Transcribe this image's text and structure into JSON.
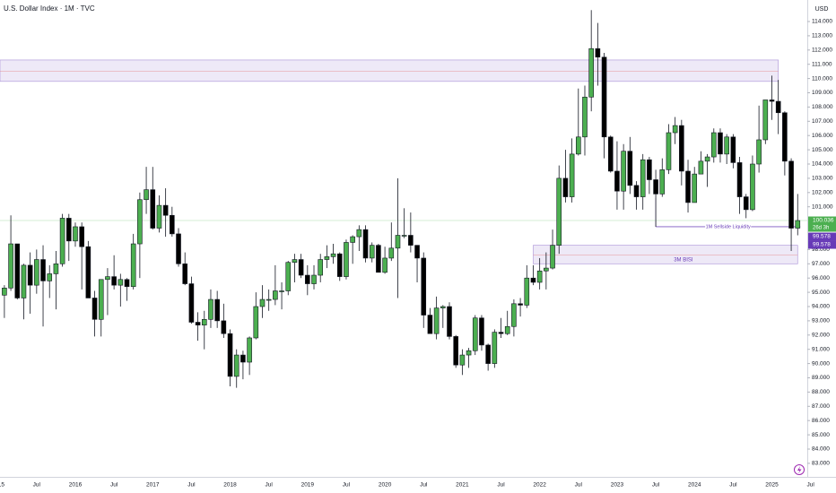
{
  "chart_data": {
    "type": "candlestick",
    "title": "U.S. Dollar Index · 1M · TVC",
    "currency": "USD",
    "x": [
      "2015-02",
      "2015-03",
      "2015-04",
      "2015-05",
      "2015-06",
      "2015-07",
      "2015-08",
      "2015-09",
      "2015-10",
      "2015-11",
      "2015-12",
      "2016-01",
      "2016-02",
      "2016-03",
      "2016-04",
      "2016-05",
      "2016-06",
      "2016-07",
      "2016-08",
      "2016-09",
      "2016-10",
      "2016-11",
      "2016-12",
      "2017-01",
      "2017-02",
      "2017-03",
      "2017-04",
      "2017-05",
      "2017-06",
      "2017-07",
      "2017-08",
      "2017-09",
      "2017-10",
      "2017-11",
      "2017-12",
      "2018-01",
      "2018-02",
      "2018-03",
      "2018-04",
      "2018-05",
      "2018-06",
      "2018-07",
      "2018-08",
      "2018-09",
      "2018-10",
      "2018-11",
      "2018-12",
      "2019-01",
      "2019-02",
      "2019-03",
      "2019-04",
      "2019-05",
      "2019-06",
      "2019-07",
      "2019-08",
      "2019-09",
      "2019-10",
      "2019-11",
      "2019-12",
      "2020-01",
      "2020-02",
      "2020-03",
      "2020-04",
      "2020-05",
      "2020-06",
      "2020-07",
      "2020-08",
      "2020-09",
      "2020-10",
      "2020-11",
      "2020-12",
      "2021-01",
      "2021-02",
      "2021-03",
      "2021-04",
      "2021-05",
      "2021-06",
      "2021-07",
      "2021-08",
      "2021-09",
      "2021-10",
      "2021-11",
      "2021-12",
      "2022-01",
      "2022-02",
      "2022-03",
      "2022-04",
      "2022-05",
      "2022-06",
      "2022-07",
      "2022-08",
      "2022-09",
      "2022-10",
      "2022-11",
      "2022-12",
      "2023-01",
      "2023-02",
      "2023-03",
      "2023-04",
      "2023-05",
      "2023-06",
      "2023-07",
      "2023-08",
      "2023-09",
      "2023-10",
      "2023-11",
      "2023-12",
      "2024-01",
      "2024-02",
      "2024-03",
      "2024-04",
      "2024-05",
      "2024-06",
      "2024-07",
      "2024-08",
      "2024-09",
      "2024-10",
      "2024-11",
      "2024-12",
      "2025-01",
      "2025-02",
      "2025-03",
      "2025-04",
      "2025-05"
    ],
    "open": [
      94.8,
      95.3,
      98.4,
      94.6,
      96.9,
      95.5,
      97.3,
      95.8,
      96.3,
      97.0,
      100.2,
      98.6,
      99.6,
      98.2,
      94.6,
      93.1,
      95.9,
      96.1,
      95.5,
      95.9,
      95.4,
      98.4,
      101.5,
      102.2,
      99.5,
      101.1,
      100.4,
      99.1,
      97.0,
      95.6,
      92.9,
      92.7,
      93.1,
      94.5,
      93.0,
      92.1,
      89.1,
      90.6,
      90.1,
      91.8,
      94.0,
      94.5,
      94.5,
      95.1,
      95.1,
      97.1,
      97.3,
      96.2,
      95.6,
      96.2,
      97.3,
      97.5,
      97.7,
      96.1,
      98.5,
      98.9,
      99.4,
      97.4,
      98.3,
      96.4,
      97.4,
      98.1,
      99.0,
      99.0,
      98.3,
      97.4,
      93.4,
      92.1,
      93.9,
      94.0,
      91.9,
      89.9,
      90.6,
      90.9,
      93.2,
      91.3,
      90.0,
      92.2,
      92.1,
      92.6,
      94.2,
      94.1,
      96.0,
      95.7,
      96.5,
      96.7,
      98.3,
      103.0,
      101.7,
      104.7,
      105.9,
      108.7,
      112.1,
      111.5,
      105.9,
      103.5,
      102.1,
      104.9,
      102.5,
      101.7,
      104.3,
      102.9,
      101.9,
      103.6,
      106.2,
      106.7,
      103.5,
      101.3,
      103.3,
      104.2,
      104.5,
      106.2,
      104.7,
      105.9,
      104.1,
      101.7,
      100.8,
      104.0,
      105.7,
      108.5,
      108.4,
      107.6,
      104.2,
      99.5
    ],
    "high": [
      95.5,
      100.4,
      98.4,
      97.0,
      97.8,
      98.0,
      98.3,
      96.9,
      97.9,
      100.5,
      100.5,
      99.9,
      99.9,
      98.6,
      95.1,
      95.9,
      96.7,
      97.6,
      96.3,
      96.0,
      99.1,
      102.0,
      103.8,
      103.8,
      101.8,
      102.3,
      101.0,
      99.5,
      97.8,
      96.1,
      93.6,
      93.7,
      95.2,
      95.1,
      94.2,
      92.4,
      91.0,
      90.9,
      91.9,
      95.0,
      95.5,
      95.2,
      96.9,
      95.7,
      97.2,
      97.7,
      97.7,
      96.9,
      96.9,
      97.7,
      98.3,
      98.4,
      97.8,
      98.7,
      99.0,
      99.7,
      99.7,
      98.5,
      98.4,
      98.2,
      99.9,
      103.0,
      100.9,
      100.6,
      98.3,
      97.8,
      93.9,
      94.7,
      94.1,
      94.3,
      92.0,
      91.0,
      91.1,
      93.4,
      93.4,
      91.4,
      92.4,
      93.2,
      93.7,
      94.5,
      94.6,
      96.9,
      96.9,
      97.4,
      97.8,
      99.4,
      103.9,
      105.0,
      105.8,
      109.3,
      109.5,
      114.8,
      113.9,
      111.8,
      106.0,
      105.6,
      105.4,
      105.9,
      102.8,
      104.7,
      104.5,
      103.6,
      104.4,
      106.8,
      107.3,
      107.1,
      104.3,
      103.8,
      104.9,
      104.7,
      106.5,
      106.5,
      106.1,
      106.1,
      104.5,
      101.9,
      104.6,
      108.1,
      108.5,
      110.2,
      109.9,
      107.7,
      104.4,
      101.9
    ],
    "low": [
      93.2,
      95.1,
      94.5,
      93.1,
      93.5,
      94.9,
      92.6,
      94.6,
      93.8,
      96.8,
      97.2,
      98.2,
      95.2,
      94.6,
      91.9,
      91.9,
      93.4,
      95.2,
      94.0,
      94.4,
      95.2,
      96.0,
      100.5,
      99.4,
      99.2,
      98.9,
      98.9,
      96.8,
      95.5,
      92.8,
      91.6,
      91.0,
      92.5,
      92.5,
      91.8,
      88.4,
      88.3,
      88.9,
      89.2,
      91.7,
      93.2,
      93.7,
      94.1,
      93.8,
      94.8,
      95.7,
      96.0,
      94.8,
      95.2,
      95.7,
      96.7,
      97.0,
      95.8,
      95.9,
      97.0,
      97.9,
      97.1,
      97.1,
      96.4,
      96.3,
      97.2,
      94.6,
      98.8,
      97.8,
      95.7,
      92.5,
      92.1,
      91.7,
      92.5,
      91.7,
      89.7,
      89.2,
      89.7,
      90.6,
      90.9,
      89.5,
      89.7,
      91.8,
      92.0,
      91.9,
      93.3,
      93.9,
      95.5,
      95.2,
      95.2,
      96.6,
      97.7,
      101.3,
      101.3,
      104.6,
      104.6,
      107.7,
      109.5,
      104.4,
      103.4,
      100.8,
      100.8,
      101.9,
      100.8,
      100.8,
      101.9,
      99.6,
      101.7,
      103.3,
      105.4,
      102.5,
      100.6,
      101.3,
      103.4,
      102.4,
      104.1,
      104.1,
      104.0,
      103.7,
      100.5,
      100.2,
      100.7,
      103.4,
      105.4,
      107.1,
      106.1,
      103.2,
      97.9,
      99.0
    ],
    "close": [
      95.3,
      98.4,
      94.6,
      96.9,
      95.5,
      97.3,
      95.8,
      96.3,
      97.0,
      100.2,
      98.6,
      99.6,
      98.2,
      94.6,
      93.1,
      95.9,
      96.1,
      95.5,
      95.9,
      95.4,
      98.4,
      101.5,
      102.2,
      99.5,
      101.1,
      100.4,
      99.1,
      97.0,
      95.6,
      92.9,
      92.7,
      93.1,
      94.5,
      93.0,
      92.1,
      89.1,
      90.6,
      90.1,
      91.8,
      94.0,
      94.5,
      94.5,
      95.1,
      95.1,
      97.1,
      97.3,
      96.2,
      95.6,
      96.2,
      97.3,
      97.5,
      97.7,
      96.1,
      98.5,
      98.9,
      99.4,
      97.4,
      98.3,
      96.4,
      97.4,
      98.1,
      99.0,
      99.0,
      98.3,
      97.4,
      93.4,
      92.1,
      93.9,
      94.0,
      91.9,
      89.9,
      90.6,
      90.9,
      93.2,
      91.3,
      90.0,
      92.2,
      92.1,
      92.6,
      94.2,
      94.1,
      96.0,
      95.7,
      96.5,
      96.7,
      98.3,
      103.0,
      101.7,
      104.7,
      105.9,
      108.7,
      112.1,
      111.5,
      105.9,
      103.5,
      102.1,
      104.9,
      102.5,
      101.7,
      104.3,
      102.9,
      101.9,
      103.6,
      106.2,
      106.7,
      103.5,
      101.3,
      103.3,
      104.2,
      104.5,
      106.2,
      104.7,
      105.9,
      104.1,
      101.7,
      100.8,
      104.0,
      105.7,
      108.5,
      108.4,
      107.6,
      104.2,
      99.5,
      100.036
    ],
    "up_color": "#4caf50",
    "down_color": "#000000",
    "ylim": [
      82.05,
      115.51
    ],
    "yticks": [
      {
        "value": 83,
        "label": "83.000"
      },
      {
        "value": 84,
        "label": "84.000"
      },
      {
        "value": 85,
        "label": "85.000"
      },
      {
        "value": 86,
        "label": "86.000"
      },
      {
        "value": 87,
        "label": "87.000"
      },
      {
        "value": 88,
        "label": "88.000"
      },
      {
        "value": 89,
        "label": "89.000"
      },
      {
        "value": 90,
        "label": "90.000"
      },
      {
        "value": 91,
        "label": "91.000"
      },
      {
        "value": 92,
        "label": "92.000"
      },
      {
        "value": 93,
        "label": "93.000"
      },
      {
        "value": 94,
        "label": "94.000"
      },
      {
        "value": 95,
        "label": "95.000"
      },
      {
        "value": 96,
        "label": "96.000"
      },
      {
        "value": 97,
        "label": "97.000"
      },
      {
        "value": 98,
        "label": "98.000"
      },
      {
        "value": 101,
        "label": "101.000"
      },
      {
        "value": 102,
        "label": "102.000"
      },
      {
        "value": 103,
        "label": "103.000"
      },
      {
        "value": 104,
        "label": "104.000"
      },
      {
        "value": 105,
        "label": "105.000"
      },
      {
        "value": 106,
        "label": "106.000"
      },
      {
        "value": 107,
        "label": "107.000"
      },
      {
        "value": 108,
        "label": "108.000"
      },
      {
        "value": 109,
        "label": "109.000"
      },
      {
        "value": 110,
        "label": "110.000"
      },
      {
        "value": 111,
        "label": "111.000"
      },
      {
        "value": 112,
        "label": "112.000"
      },
      {
        "value": 113,
        "label": "113.000"
      },
      {
        "value": 114,
        "label": "114.000"
      }
    ],
    "xticks": [
      {
        "value": "2015-01",
        "label": "2015"
      },
      {
        "value": "2015-07",
        "label": "Jul"
      },
      {
        "value": "2016-01",
        "label": "2016"
      },
      {
        "value": "2016-07",
        "label": "Jul"
      },
      {
        "value": "2017-01",
        "label": "2017"
      },
      {
        "value": "2017-07",
        "label": "Jul"
      },
      {
        "value": "2018-01",
        "label": "2018"
      },
      {
        "value": "2018-07",
        "label": "Jul"
      },
      {
        "value": "2019-01",
        "label": "2019"
      },
      {
        "value": "2019-07",
        "label": "Jul"
      },
      {
        "value": "2020-01",
        "label": "2020"
      },
      {
        "value": "2020-07",
        "label": "Jul"
      },
      {
        "value": "2021-01",
        "label": "2021"
      },
      {
        "value": "2021-07",
        "label": "Jul"
      },
      {
        "value": "2022-01",
        "label": "2022"
      },
      {
        "value": "2022-07",
        "label": "Jul"
      },
      {
        "value": "2023-01",
        "label": "2023"
      },
      {
        "value": "2023-07",
        "label": "Jul"
      },
      {
        "value": "2024-01",
        "label": "2024"
      },
      {
        "value": "2024-07",
        "label": "Jul"
      },
      {
        "value": "2025-01",
        "label": "2025"
      },
      {
        "value": "2025-07",
        "label": "Jul"
      }
    ],
    "last_price": 100.036,
    "countdown": "26d 3h",
    "price_labels": [
      99.578,
      99.578
    ],
    "zones": [
      {
        "from": "2015-01",
        "to": "2025-02",
        "top": 111.3,
        "bottom": 109.8,
        "mid": 110.5
      },
      {
        "from": "2021-12",
        "to": "2025-05",
        "top": 98.3,
        "bottom": 97.0,
        "mid": 97.6,
        "label": "3M BISI"
      }
    ],
    "level": {
      "from": "2023-07",
      "to": "2025-05",
      "value": 99.6,
      "label": "1M Sellside Liquidity"
    }
  }
}
